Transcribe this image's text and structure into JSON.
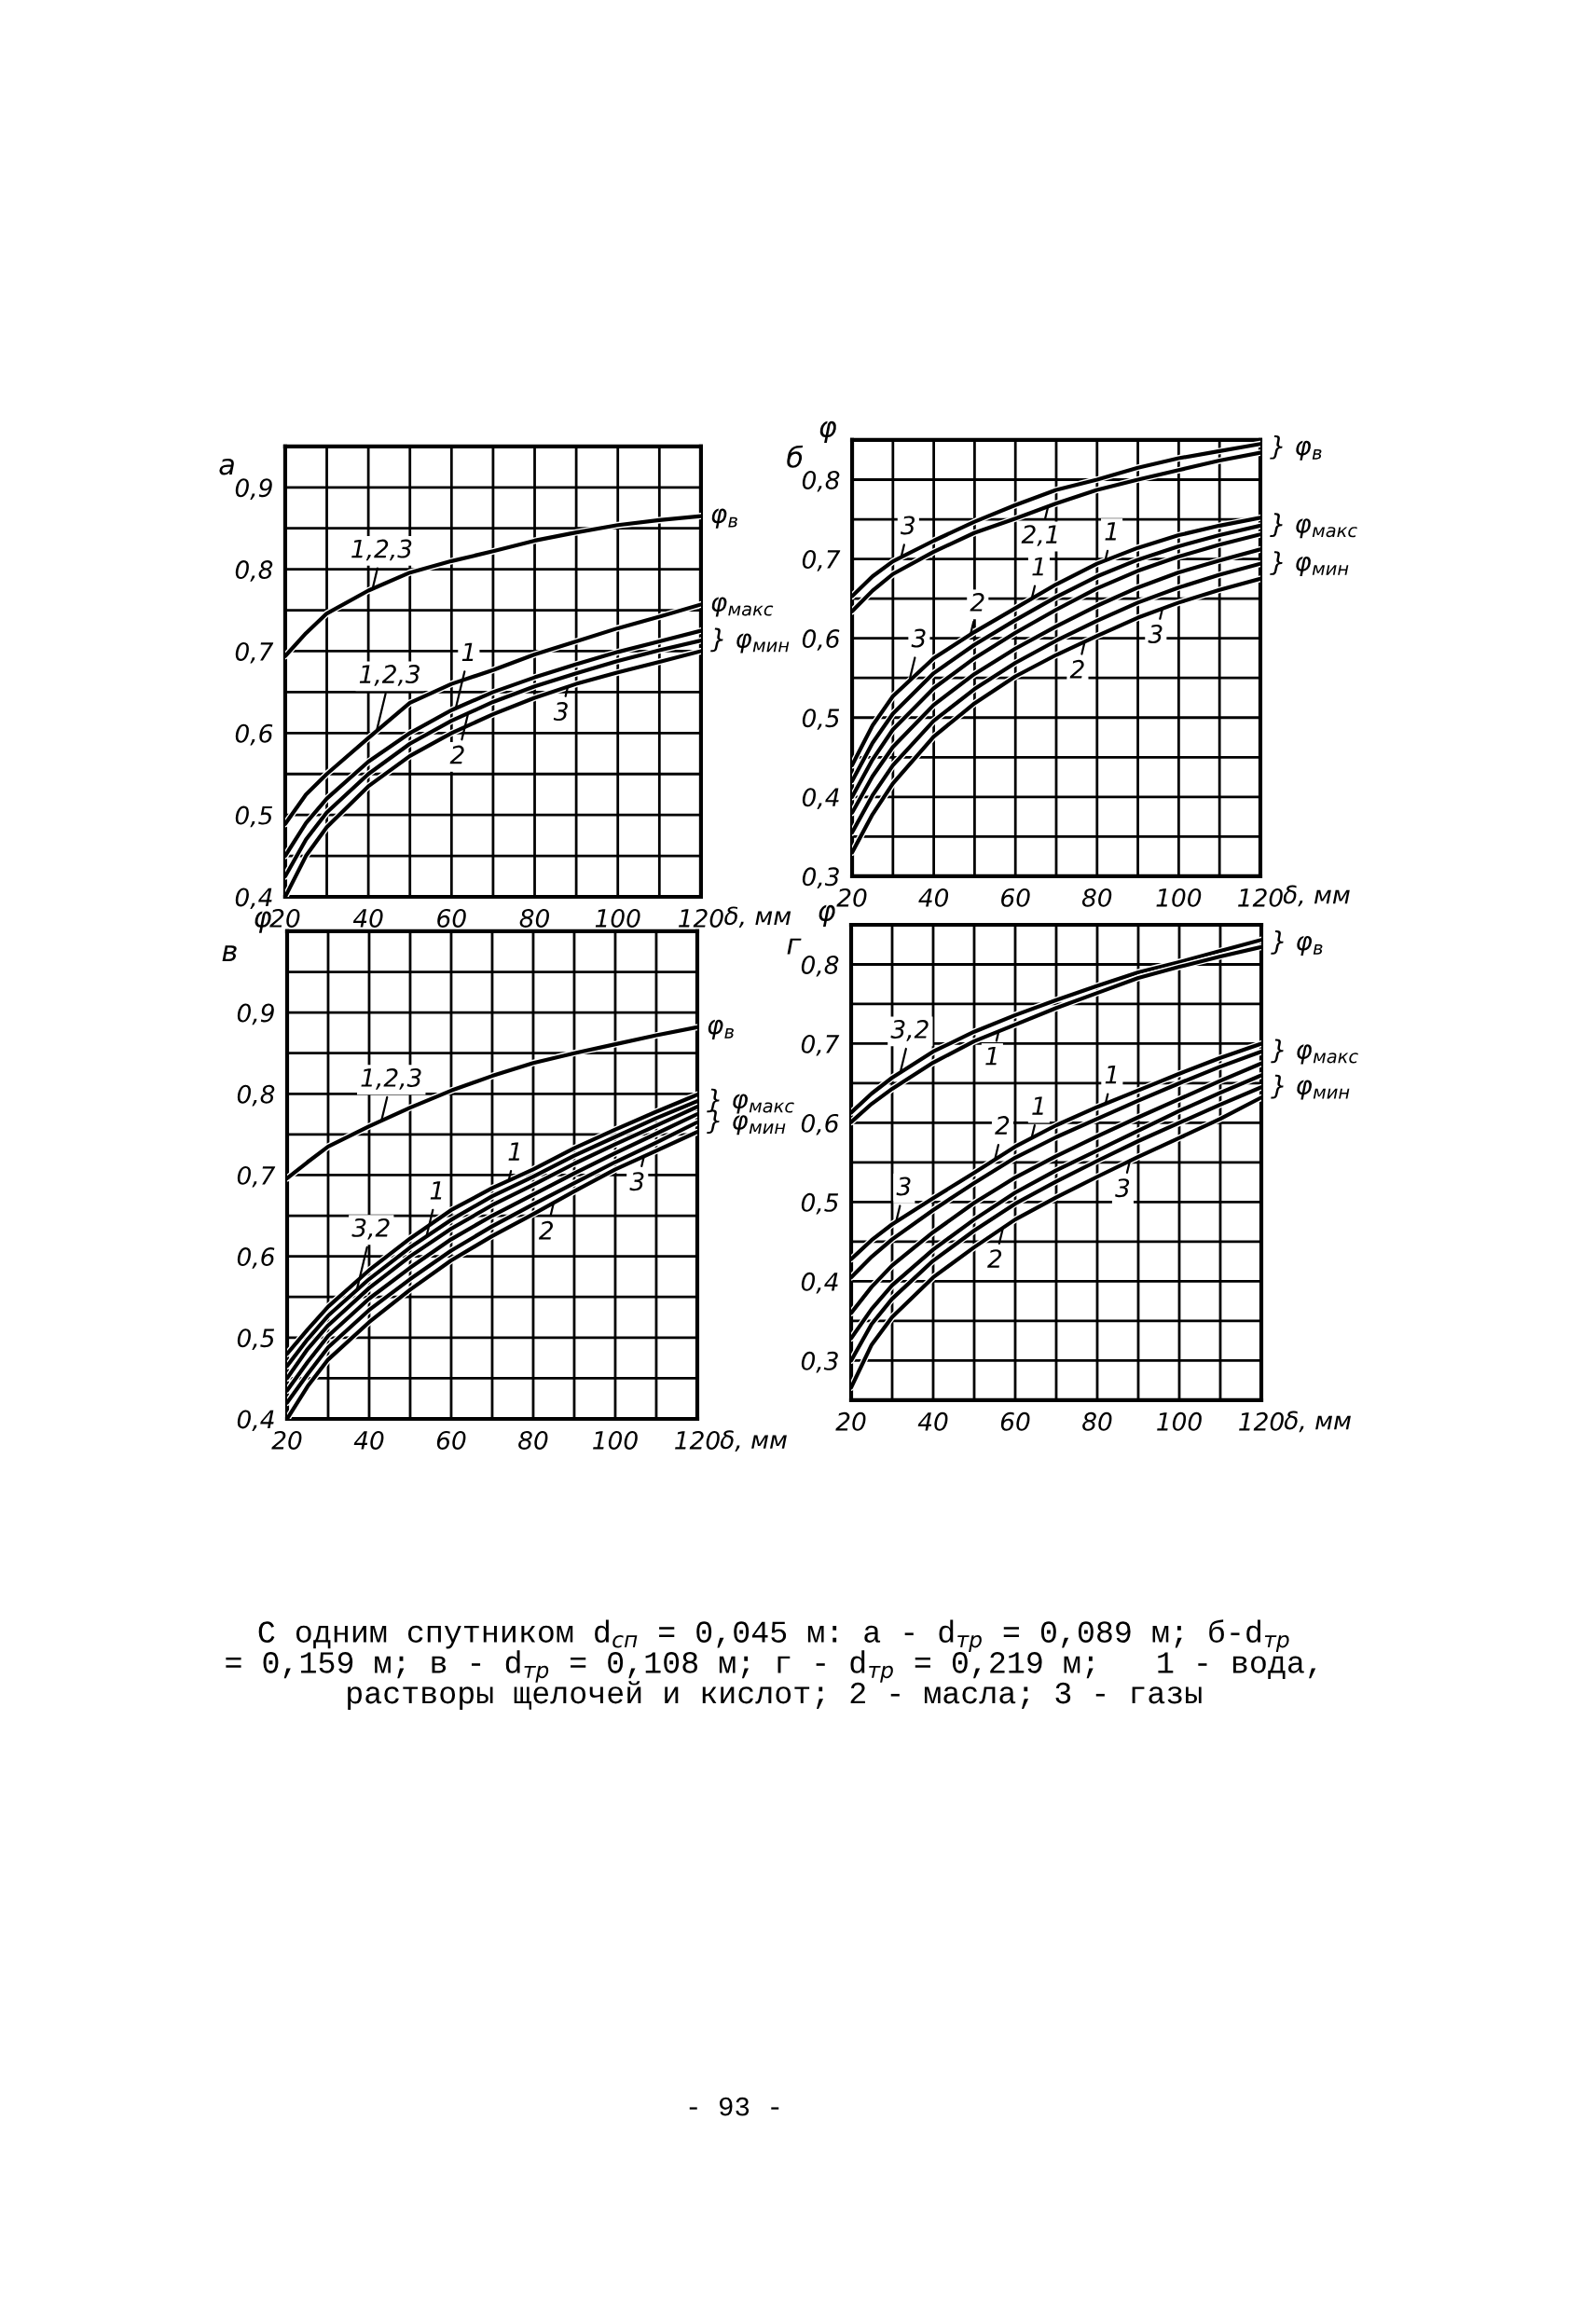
{
  "chart_data": [
    {
      "type": "line",
      "title": "а",
      "xlabel": "δ, мм",
      "x": [
        20,
        25,
        30,
        40,
        50,
        60,
        70,
        80,
        90,
        100,
        110,
        120
      ],
      "xlim": [
        20,
        120
      ],
      "ylim": [
        0.4,
        0.95
      ],
      "grid": true,
      "xticks": [
        20,
        {
          "value": 30,
          "label": null
        },
        40,
        {
          "value": 50,
          "label": null
        },
        60,
        {
          "value": 70,
          "label": null
        },
        80,
        {
          "value": 90,
          "label": null
        },
        100,
        {
          "value": 110,
          "label": null
        },
        120
      ],
      "yticks": [
        {
          "value": 0.4,
          "label": "0,4"
        },
        {
          "value": 0.45,
          "label": null
        },
        {
          "value": 0.5,
          "label": "0,5"
        },
        {
          "value": 0.55,
          "label": null
        },
        {
          "value": 0.6,
          "label": "0,6"
        },
        {
          "value": 0.65,
          "label": null
        },
        {
          "value": 0.7,
          "label": "0,7"
        },
        {
          "value": 0.75,
          "label": null
        },
        {
          "value": 0.8,
          "label": "0,8"
        },
        {
          "value": 0.85,
          "label": null
        },
        {
          "value": 0.9,
          "label": "0,9"
        }
      ],
      "series": [
        {
          "color": "#000000",
          "values": [
            0.694,
            0.722,
            0.746,
            0.774,
            0.796,
            0.81,
            0.822,
            0.835,
            0.845,
            0.854,
            0.86,
            0.865
          ]
        },
        {
          "color": "#000000",
          "values": [
            0.489,
            0.525,
            0.55,
            0.594,
            0.637,
            0.66,
            0.677,
            0.696,
            0.712,
            0.728,
            0.742,
            0.757
          ]
        },
        {
          "color": "#000000",
          "values": [
            0.45,
            0.49,
            0.52,
            0.565,
            0.6,
            0.628,
            0.65,
            0.668,
            0.684,
            0.699,
            0.712,
            0.725
          ]
        },
        {
          "color": "#000000",
          "values": [
            0.425,
            0.47,
            0.503,
            0.55,
            0.587,
            0.615,
            0.638,
            0.657,
            0.673,
            0.688,
            0.701,
            0.713
          ]
        },
        {
          "color": "#000000",
          "values": [
            0.4,
            0.45,
            0.485,
            0.535,
            0.572,
            0.6,
            0.623,
            0.643,
            0.66,
            0.674,
            0.687,
            0.7
          ]
        }
      ],
      "annotations": [
        {
          "text": "1,2,3",
          "x": 41,
          "y": 0.776
        },
        {
          "text": "1,2,3",
          "x": 42,
          "y": 0.603
        },
        {
          "text": "1",
          "x": 61,
          "y": 0.63
        },
        {
          "text": "2",
          "x": 64,
          "y": 0.624
        },
        {
          "text": "3",
          "x": 88,
          "y": 0.657
        },
        {
          "text": "φ$_{в}$",
          "x": 120,
          "y": 0.865
        },
        {
          "text": "φ$_{макс}$",
          "x": 120,
          "y": 0.757
        },
        {
          "text": "} φ$_{мин}$",
          "x": 120,
          "y": 0.713
        }
      ]
    },
    {
      "type": "line",
      "title": "б",
      "ylabel": "φ",
      "xlabel": "δ, мм",
      "x": [
        20,
        25,
        30,
        40,
        50,
        60,
        70,
        80,
        90,
        100,
        110,
        120
      ],
      "xlim": [
        20,
        120
      ],
      "ylim": [
        0.3,
        0.85
      ],
      "grid": true,
      "xticks": [
        20,
        {
          "value": 30,
          "label": null
        },
        40,
        {
          "value": 50,
          "label": null
        },
        60,
        {
          "value": 70,
          "label": null
        },
        80,
        {
          "value": 90,
          "label": null
        },
        100,
        {
          "value": 110,
          "label": null
        },
        120
      ],
      "yticks": [
        {
          "value": 0.3,
          "label": "0,3"
        },
        {
          "value": 0.35,
          "label": null
        },
        {
          "value": 0.4,
          "label": "0,4"
        },
        {
          "value": 0.45,
          "label": null
        },
        {
          "value": 0.5,
          "label": "0,5"
        },
        {
          "value": 0.55,
          "label": null
        },
        {
          "value": 0.6,
          "label": "0,6"
        },
        {
          "value": 0.65,
          "label": null
        },
        {
          "value": 0.7,
          "label": "0,7"
        },
        {
          "value": 0.75,
          "label": null
        },
        {
          "value": 0.8,
          "label": "0,8"
        }
      ],
      "series": [
        {
          "color": "#000000",
          "values": [
            0.653,
            0.678,
            0.697,
            0.723,
            0.747,
            0.768,
            0.787,
            0.8,
            0.815,
            0.827,
            0.836,
            0.845
          ]
        },
        {
          "color": "#000000",
          "values": [
            0.634,
            0.66,
            0.681,
            0.709,
            0.733,
            0.751,
            0.77,
            0.787,
            0.8,
            0.812,
            0.824,
            0.834
          ]
        },
        {
          "color": "#000000",
          "values": [
            0.44,
            0.49,
            0.527,
            0.575,
            0.608,
            0.638,
            0.668,
            0.694,
            0.714,
            0.73,
            0.742,
            0.752
          ]
        },
        {
          "color": "#000000",
          "values": [
            0.42,
            0.468,
            0.505,
            0.556,
            0.592,
            0.623,
            0.652,
            0.678,
            0.699,
            0.716,
            0.73,
            0.742
          ]
        },
        {
          "color": "#000000",
          "values": [
            0.4,
            0.447,
            0.485,
            0.537,
            0.575,
            0.607,
            0.636,
            0.663,
            0.685,
            0.703,
            0.718,
            0.731
          ]
        },
        {
          "color": "#000000",
          "values": [
            0.38,
            0.426,
            0.463,
            0.516,
            0.555,
            0.587,
            0.615,
            0.641,
            0.664,
            0.683,
            0.698,
            0.712
          ]
        },
        {
          "color": "#000000",
          "values": [
            0.355,
            0.402,
            0.44,
            0.496,
            0.536,
            0.569,
            0.597,
            0.622,
            0.645,
            0.664,
            0.68,
            0.694
          ]
        },
        {
          "color": "#000000",
          "values": [
            0.33,
            0.378,
            0.417,
            0.476,
            0.518,
            0.552,
            0.579,
            0.603,
            0.626,
            0.645,
            0.661,
            0.675
          ]
        }
      ],
      "annotations": [
        {
          "text": "3",
          "x": 32,
          "y": 0.702
        },
        {
          "text": "2,1",
          "x": 68,
          "y": 0.766
        },
        {
          "text": "3",
          "x": 34,
          "y": 0.546
        },
        {
          "text": "2",
          "x": 49,
          "y": 0.605
        },
        {
          "text": "1",
          "x": 64,
          "y": 0.65
        },
        {
          "text": "1",
          "x": 82,
          "y": 0.698
        },
        {
          "text": "2",
          "x": 77,
          "y": 0.596
        },
        {
          "text": "3",
          "x": 96,
          "y": 0.637
        },
        {
          "text": "} φ$_{в}$",
          "x": 120,
          "y": 0.84
        },
        {
          "text": "} φ$_{макс}$",
          "x": 120,
          "y": 0.742
        },
        {
          "text": "} φ$_{мин}$",
          "x": 120,
          "y": 0.694
        }
      ]
    },
    {
      "type": "line",
      "title": "в",
      "ylabel": "φ",
      "xlabel": "δ, мм",
      "x": [
        20,
        25,
        30,
        40,
        50,
        60,
        70,
        80,
        90,
        100,
        110,
        120
      ],
      "xlim": [
        20,
        120
      ],
      "ylim": [
        0.4,
        1.0
      ],
      "grid": true,
      "xticks": [
        20,
        {
          "value": 30,
          "label": null
        },
        40,
        {
          "value": 50,
          "label": null
        },
        60,
        {
          "value": 70,
          "label": null
        },
        80,
        {
          "value": 90,
          "label": null
        },
        100,
        {
          "value": 110,
          "label": null
        },
        120
      ],
      "yticks": [
        {
          "value": 0.4,
          "label": "0,4"
        },
        {
          "value": 0.45,
          "label": null
        },
        {
          "value": 0.5,
          "label": "0,5"
        },
        {
          "value": 0.55,
          "label": null
        },
        {
          "value": 0.6,
          "label": "0,6"
        },
        {
          "value": 0.65,
          "label": null
        },
        {
          "value": 0.7,
          "label": "0,7"
        },
        {
          "value": 0.75,
          "label": null
        },
        {
          "value": 0.8,
          "label": "0,8"
        },
        {
          "value": 0.85,
          "label": null
        },
        {
          "value": 0.9,
          "label": "0,9"
        },
        {
          "value": 0.95,
          "label": null
        }
      ],
      "series": [
        {
          "color": "#000000",
          "values": [
            0.696,
            0.716,
            0.735,
            0.76,
            0.783,
            0.804,
            0.822,
            0.838,
            0.85,
            0.861,
            0.872,
            0.882
          ]
        },
        {
          "color": "#000000",
          "values": [
            0.48,
            0.51,
            0.538,
            0.583,
            0.622,
            0.657,
            0.684,
            0.707,
            0.733,
            0.756,
            0.778,
            0.799
          ]
        },
        {
          "color": "#000000",
          "values": [
            0.465,
            0.498,
            0.527,
            0.572,
            0.611,
            0.645,
            0.674,
            0.698,
            0.724,
            0.747,
            0.77,
            0.791
          ]
        },
        {
          "color": "#000000",
          "values": [
            0.45,
            0.486,
            0.515,
            0.561,
            0.6,
            0.634,
            0.663,
            0.688,
            0.714,
            0.738,
            0.761,
            0.784
          ]
        },
        {
          "color": "#000000",
          "values": [
            0.435,
            0.47,
            0.502,
            0.548,
            0.586,
            0.621,
            0.65,
            0.676,
            0.702,
            0.727,
            0.751,
            0.775
          ]
        },
        {
          "color": "#000000",
          "values": [
            0.42,
            0.455,
            0.488,
            0.534,
            0.572,
            0.607,
            0.637,
            0.664,
            0.69,
            0.716,
            0.74,
            0.765
          ]
        },
        {
          "color": "#000000",
          "values": [
            0.4,
            0.44,
            0.473,
            0.519,
            0.559,
            0.595,
            0.625,
            0.652,
            0.68,
            0.707,
            0.73,
            0.753
          ]
        }
      ],
      "annotations": [
        {
          "text": "1,2,3",
          "x": 43,
          "y": 0.767
        },
        {
          "text": "1",
          "x": 74,
          "y": 0.693
        },
        {
          "text": "1",
          "x": 54,
          "y": 0.625
        },
        {
          "text": "3,2",
          "x": 37,
          "y": 0.559
        },
        {
          "text": "2",
          "x": 85,
          "y": 0.666
        },
        {
          "text": "3",
          "x": 107,
          "y": 0.723
        },
        {
          "text": "φ$_{в}$",
          "x": 120,
          "y": 0.882
        },
        {
          "text": "} φ$_{макс}$",
          "x": 120,
          "y": 0.791
        },
        {
          "text": "} φ$_{мин}$",
          "x": 120,
          "y": 0.765
        }
      ]
    },
    {
      "type": "line",
      "title": "г",
      "ylabel": "φ",
      "xlabel": "δ, мм",
      "x": [
        20,
        25,
        30,
        40,
        50,
        60,
        70,
        80,
        90,
        100,
        110,
        120
      ],
      "xlim": [
        20,
        120
      ],
      "ylim": [
        0.25,
        0.85
      ],
      "grid": true,
      "xticks": [
        20,
        {
          "value": 30,
          "label": null
        },
        40,
        {
          "value": 50,
          "label": null
        },
        60,
        {
          "value": 70,
          "label": null
        },
        80,
        {
          "value": 90,
          "label": null
        },
        100,
        {
          "value": 110,
          "label": null
        },
        120
      ],
      "yticks": [
        {
          "value": 0.3,
          "label": "0,3"
        },
        {
          "value": 0.35,
          "label": null
        },
        {
          "value": 0.4,
          "label": "0,4"
        },
        {
          "value": 0.45,
          "label": null
        },
        {
          "value": 0.5,
          "label": "0,5"
        },
        {
          "value": 0.55,
          "label": null
        },
        {
          "value": 0.6,
          "label": "0,6"
        },
        {
          "value": 0.65,
          "label": null
        },
        {
          "value": 0.7,
          "label": "0,7"
        },
        {
          "value": 0.75,
          "label": null
        },
        {
          "value": 0.8,
          "label": "0,8"
        }
      ],
      "series": [
        {
          "color": "#000000",
          "values": [
            0.613,
            0.637,
            0.657,
            0.69,
            0.715,
            0.736,
            0.755,
            0.773,
            0.79,
            0.803,
            0.817,
            0.831
          ]
        },
        {
          "color": "#000000",
          "values": [
            0.601,
            0.624,
            0.643,
            0.676,
            0.703,
            0.724,
            0.745,
            0.764,
            0.783,
            0.797,
            0.81,
            0.822
          ]
        },
        {
          "color": "#000000",
          "values": [
            0.428,
            0.452,
            0.472,
            0.505,
            0.537,
            0.57,
            0.597,
            0.62,
            0.641,
            0.662,
            0.682,
            0.7
          ]
        },
        {
          "color": "#000000",
          "values": [
            0.405,
            0.431,
            0.453,
            0.49,
            0.524,
            0.556,
            0.582,
            0.605,
            0.628,
            0.65,
            0.671,
            0.69
          ]
        },
        {
          "color": "#000000",
          "values": [
            0.36,
            0.393,
            0.42,
            0.462,
            0.499,
            0.531,
            0.558,
            0.583,
            0.607,
            0.63,
            0.653,
            0.675
          ]
        },
        {
          "color": "#000000",
          "values": [
            0.328,
            0.365,
            0.395,
            0.44,
            0.478,
            0.512,
            0.54,
            0.565,
            0.59,
            0.615,
            0.638,
            0.66
          ]
        },
        {
          "color": "#000000",
          "values": [
            0.3,
            0.346,
            0.378,
            0.426,
            0.464,
            0.498,
            0.526,
            0.552,
            0.577,
            0.6,
            0.623,
            0.645
          ]
        },
        {
          "color": "#000000",
          "values": [
            0.266,
            0.32,
            0.355,
            0.405,
            0.443,
            0.478,
            0.506,
            0.532,
            0.557,
            0.581,
            0.605,
            0.632
          ]
        }
      ],
      "annotations": [
        {
          "text": "3,2",
          "x": 32,
          "y": 0.664
        },
        {
          "text": "1",
          "x": 56,
          "y": 0.716
        },
        {
          "text": "1",
          "x": 82,
          "y": 0.624
        },
        {
          "text": "1",
          "x": 64,
          "y": 0.581
        },
        {
          "text": "2",
          "x": 55,
          "y": 0.553
        },
        {
          "text": "3",
          "x": 31,
          "y": 0.476
        },
        {
          "text": "2",
          "x": 57,
          "y": 0.467
        },
        {
          "text": "3",
          "x": 88,
          "y": 0.553
        },
        {
          "text": "} φ$_{в}$",
          "x": 120,
          "y": 0.827
        },
        {
          "text": "} φ$_{макс}$",
          "x": 120,
          "y": 0.69
        },
        {
          "text": "} φ$_{мин}$",
          "x": 120,
          "y": 0.645
        },
        "С одним спутником d$_{сп}$ = 0,045 м: а - d$_{тр}$ = 0,089 м; б-d$_{тр}$\n= 0,159 м; в - d$_{тр}$ = 0,108 м; г - d$_{тр}$ = 0,219 м;   1 - вода,\nрастворы щелочей и кислот; 2 - масла; 3 - газы",
        "- 93 -"
      ]
    }
  ]
}
